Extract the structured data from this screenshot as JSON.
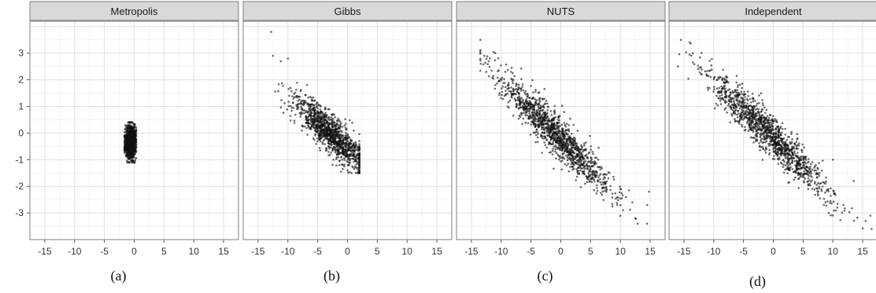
{
  "chart_data": [
    {
      "type": "scatter",
      "title": "Metropolis",
      "caption": "(a)",
      "xlim": [
        -17.5,
        17.5
      ],
      "ylim": [
        -4,
        4.2
      ],
      "xticks": [
        -15,
        -10,
        -5,
        0,
        5,
        10,
        15
      ],
      "yticks": [
        -3,
        -2,
        -1,
        0,
        1,
        2,
        3
      ],
      "grid": true,
      "distribution": {
        "n": 900,
        "x_center": -0.6,
        "x_spread": 0.45,
        "slope": 0.0,
        "y_noise": 0.35,
        "x_range": [
          -1.6,
          0.3
        ],
        "y_range": [
          -1.1,
          0.4
        ],
        "seed": 11
      },
      "extreme_points": [
        {
          "x": -1.0,
          "y": 0.4
        },
        {
          "x": -1.2,
          "y": -1.05
        },
        {
          "x": 0.1,
          "y": 0.3
        },
        {
          "x": -1.5,
          "y": -0.5
        }
      ]
    },
    {
      "type": "scatter",
      "title": "Gibbs",
      "caption": "(b)",
      "xlim": [
        -17.5,
        17.5
      ],
      "ylim": [
        -4,
        4.2
      ],
      "xticks": [
        -15,
        -10,
        -5,
        0,
        5,
        10,
        15
      ],
      "yticks": [
        -3,
        -2,
        -1,
        0,
        1,
        2,
        3
      ],
      "grid": true,
      "distribution": {
        "n": 1200,
        "x_center": -3.0,
        "x_spread": 3.0,
        "slope": -0.2,
        "y_noise": 0.35,
        "x_range": [
          -12.8,
          2.0
        ],
        "y_range": [
          -1.5,
          3.0
        ],
        "seed": 23
      },
      "extreme_points": [
        {
          "x": -12.8,
          "y": 3.8
        },
        {
          "x": -12.5,
          "y": 2.9
        },
        {
          "x": -11.2,
          "y": 2.7
        },
        {
          "x": -10.0,
          "y": 2.8
        },
        {
          "x": 1.5,
          "y": -1.3
        },
        {
          "x": 2.0,
          "y": -0.6
        },
        {
          "x": 0.0,
          "y": -1.4
        },
        {
          "x": -2.5,
          "y": -1.2
        }
      ]
    },
    {
      "type": "scatter",
      "title": "NUTS",
      "caption": "(c)",
      "xlim": [
        -17.5,
        17.5
      ],
      "ylim": [
        -4,
        4.2
      ],
      "xticks": [
        -15,
        -10,
        -5,
        0,
        5,
        10,
        15
      ],
      "yticks": [
        -3,
        -2,
        -1,
        0,
        1,
        2,
        3
      ],
      "grid": true,
      "distribution": {
        "n": 1300,
        "x_center": -1.0,
        "x_spread": 4.8,
        "slope": -0.22,
        "y_noise": 0.38,
        "x_range": [
          -13.5,
          15.0
        ],
        "y_range": [
          -3.4,
          3.1
        ],
        "seed": 37
      },
      "extreme_points": [
        {
          "x": -13.5,
          "y": 3.5
        },
        {
          "x": -11.0,
          "y": 3.0
        },
        {
          "x": -12.5,
          "y": 2.3
        },
        {
          "x": 12.5,
          "y": -3.2
        },
        {
          "x": 14.5,
          "y": -2.7
        },
        {
          "x": 14.8,
          "y": -2.2
        },
        {
          "x": 12.0,
          "y": -2.6
        }
      ]
    },
    {
      "type": "scatter",
      "title": "Independent",
      "caption": "(d)",
      "xlim": [
        -17.5,
        17.5
      ],
      "ylim": [
        -4,
        4.2
      ],
      "xticks": [
        -15,
        -10,
        -5,
        0,
        5,
        10,
        15
      ],
      "yticks": [
        -3,
        -2,
        -1,
        0,
        1,
        2,
        3
      ],
      "grid": true,
      "distribution": {
        "n": 1300,
        "x_center": -1.0,
        "x_spread": 5.0,
        "slope": -0.22,
        "y_noise": 0.38,
        "x_range": [
          -16.5,
          17.0
        ],
        "y_range": [
          -3.6,
          3.5
        ],
        "seed": 51
      },
      "extreme_points": [
        {
          "x": -15.5,
          "y": 3.5
        },
        {
          "x": -16.0,
          "y": 2.5
        },
        {
          "x": -13.5,
          "y": 3.0
        },
        {
          "x": -12.0,
          "y": 2.2
        },
        {
          "x": 15.5,
          "y": -3.3
        },
        {
          "x": 16.5,
          "y": -3.6
        },
        {
          "x": 16.3,
          "y": -3.1
        },
        {
          "x": 13.5,
          "y": -1.8
        },
        {
          "x": 10.0,
          "y": -1.0
        }
      ]
    }
  ]
}
